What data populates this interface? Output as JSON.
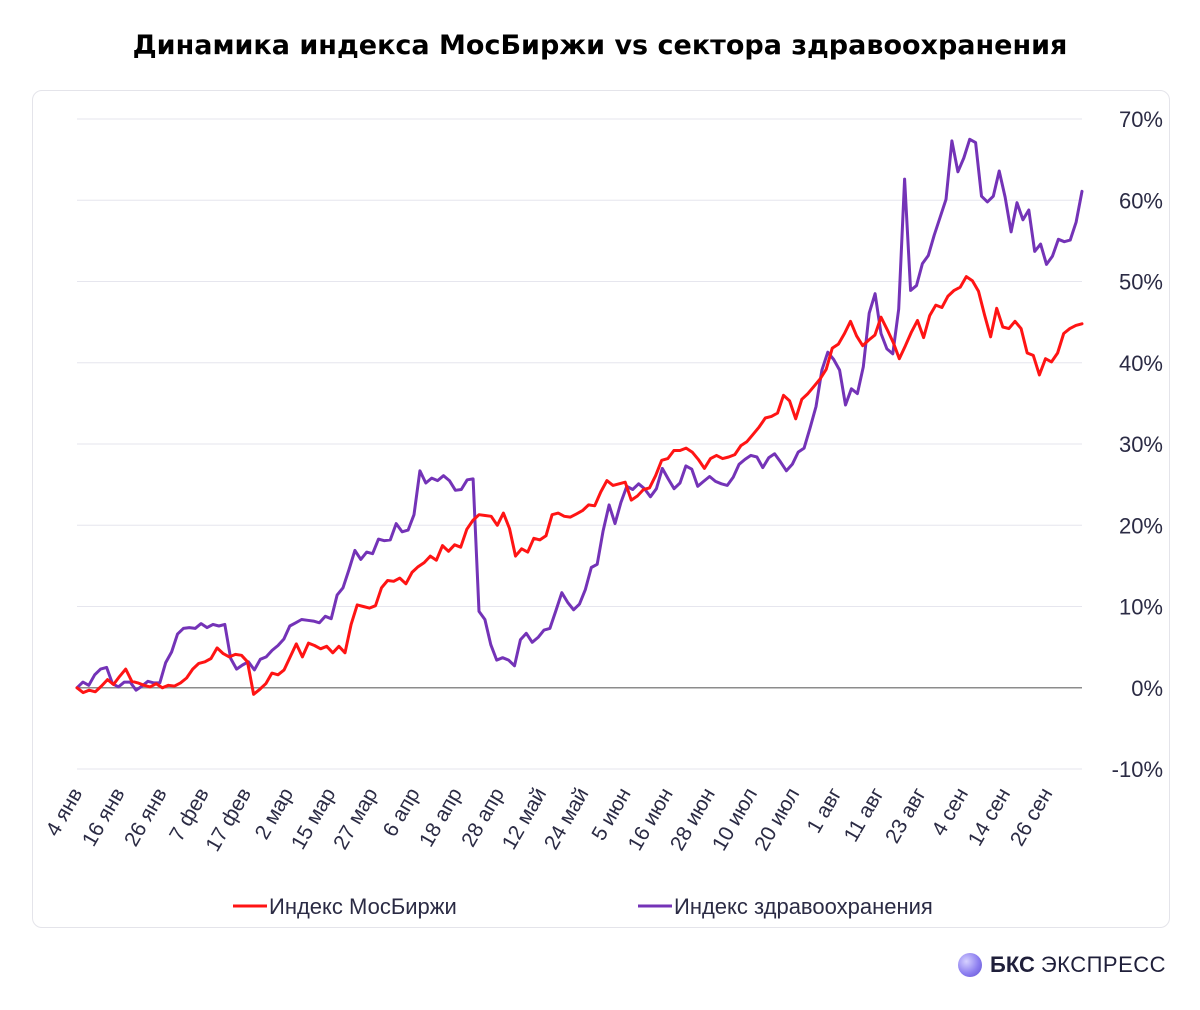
{
  "title": "Динамика индекса МосБиржи vs сектора здравоохранения",
  "brand": {
    "bold": "БКС",
    "light": "ЭКСПРЕСС"
  },
  "chart_data": {
    "type": "line",
    "title": "Динамика индекса МосБиржи vs сектора здравоохранения",
    "x_tick_labels": [
      "4 янв",
      "16 янв",
      "26 янв",
      "7 фев",
      "17 фев",
      "2 мар",
      "15 мар",
      "27 мар",
      "6 апр",
      "18 апр",
      "28 апр",
      "12 май",
      "24 май",
      "5 июн",
      "16 июн",
      "28 июн",
      "10 июл",
      "20 июл",
      "1 авг",
      "11 авг",
      "23 авг",
      "4 сен",
      "14 сен",
      "26 сен"
    ],
    "y_tick_labels": [
      "70%",
      "60%",
      "50%",
      "40%",
      "30%",
      "20%",
      "10%",
      "0%",
      "-10%"
    ],
    "ylim": [
      -10,
      70
    ],
    "grid": true,
    "legend_position": "bottom",
    "colors": {
      "moex": "#ff1414",
      "health": "#7433b7",
      "zero_line": "#8c8c8c",
      "grid": "#e6e6ee",
      "axis_text": "#2b2b44"
    },
    "series": [
      {
        "name": "Индекс МосБиржи",
        "color": "#ff1414",
        "values": [
          0,
          -0.6,
          -0.3,
          -0.5,
          0.2,
          1,
          0.4,
          1.4,
          2.3,
          0.8,
          0.6,
          0.3,
          0.1,
          0.5,
          0,
          0.3,
          0.2,
          0.6,
          1.2,
          2.3,
          3,
          3.2,
          3.6,
          4.9,
          4.2,
          3.8,
          4.1,
          4,
          3.2,
          -0.8,
          -0.2,
          0.5,
          1.8,
          1.6,
          2.2,
          3.8,
          5.4,
          3.8,
          5.5,
          5.2,
          4.8,
          5.1,
          4.3,
          5.1,
          4.3,
          7.8,
          10.2,
          10,
          9.8,
          10.1,
          12.3,
          13.2,
          13.1,
          13.5,
          12.8,
          14.2,
          14.9,
          15.4,
          16.2,
          15.7,
          17.5,
          16.8,
          17.6,
          17.3,
          19.5,
          20.6,
          21.3,
          21.2,
          21.1,
          20,
          21.5,
          19.6,
          16.2,
          17.1,
          16.7,
          18.4,
          18.2,
          18.7,
          21.3,
          21.5,
          21.1,
          21,
          21.4,
          21.8,
          22.5,
          22.4,
          24.1,
          25.5,
          24.9,
          25.1,
          25.3,
          23.1,
          23.6,
          24.4,
          24.6,
          26.1,
          28,
          28.2,
          29.2,
          29.2,
          29.5,
          29,
          28.1,
          27,
          28.2,
          28.6,
          28.2,
          28.4,
          28.7,
          29.8,
          30.3,
          31.2,
          32.1,
          33.2,
          33.4,
          33.8,
          36,
          35.3,
          33.1,
          35.5,
          36.2,
          37.1,
          38,
          39.2,
          41.8,
          42.3,
          43.6,
          45.1,
          43.3,
          42.1,
          42.8,
          43.4,
          45.6,
          44.1,
          42.5,
          40.5,
          42.1,
          43.8,
          45.2,
          43.1,
          45.8,
          47.1,
          46.8,
          48.2,
          48.9,
          49.3,
          50.6,
          50.1,
          48.8,
          45.9,
          43.2,
          46.7,
          44.4,
          44.2,
          45.1,
          44.2,
          41.2,
          40.9,
          38.5,
          40.5,
          40.1,
          41.2,
          43.6,
          44.2,
          44.6,
          44.8
        ]
      },
      {
        "name": "Индекс здравоохранения",
        "color": "#7433b7",
        "values": [
          0,
          0.7,
          0.3,
          1.6,
          2.3,
          2.5,
          0.5,
          0.1,
          0.7,
          0.7,
          -0.3,
          0.2,
          0.8,
          0.6,
          0.6,
          3.1,
          4.4,
          6.6,
          7.3,
          7.4,
          7.3,
          7.9,
          7.4,
          7.8,
          7.6,
          7.8,
          3.6,
          2.3,
          2.8,
          3.2,
          2.2,
          3.5,
          3.8,
          4.6,
          5.2,
          6,
          7.6,
          8,
          8.4,
          8.3,
          8.2,
          8,
          8.8,
          8.5,
          11.4,
          12.3,
          14.5,
          16.9,
          15.8,
          16.7,
          16.5,
          18.3,
          18.1,
          18.2,
          20.2,
          19.2,
          19.4,
          21.3,
          26.7,
          25.2,
          25.8,
          25.5,
          26.1,
          25.5,
          24.3,
          24.4,
          25.6,
          25.7,
          9.4,
          8.4,
          5.3,
          3.4,
          3.7,
          3.4,
          2.7,
          5.9,
          6.7,
          5.6,
          6.2,
          7.1,
          7.3,
          9.5,
          11.7,
          10.5,
          9.6,
          10.3,
          12.1,
          14.8,
          15.2,
          19.3,
          22.5,
          20.2,
          22.8,
          24.8,
          24.4,
          25.1,
          24.5,
          23.5,
          24.5,
          27,
          25.7,
          24.5,
          25.2,
          27.3,
          26.9,
          24.8,
          25.4,
          26,
          25.4,
          25.1,
          24.9,
          25.9,
          27.5,
          28.1,
          28.6,
          28.4,
          27.1,
          28.3,
          28.8,
          27.8,
          26.7,
          27.5,
          29,
          29.5,
          32,
          34.6,
          39.1,
          41.3,
          40.4,
          39.1,
          34.8,
          36.8,
          36.2,
          39.5,
          46.1,
          48.5,
          43.6,
          41.7,
          41.1,
          46.6,
          62.6,
          48.9,
          49.5,
          52.2,
          53.2,
          55.7,
          57.9,
          60.1,
          67.3,
          63.5,
          65.2,
          67.5,
          67.1,
          60.5,
          59.8,
          60.5,
          63.6,
          60.4,
          56.1,
          59.7,
          57.6,
          58.8,
          53.7,
          54.6,
          52.1,
          53.1,
          55.2,
          54.9,
          55.1,
          57.3,
          61.1
        ]
      }
    ]
  }
}
